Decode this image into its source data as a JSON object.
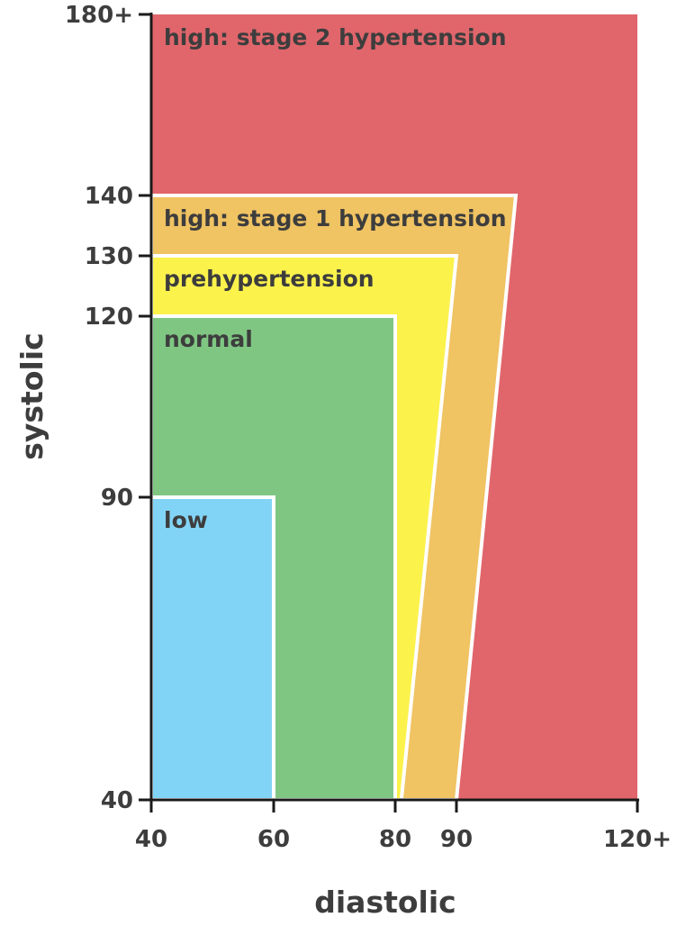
{
  "chart_data": {
    "type": "area",
    "title": "",
    "xlabel": "diastolic",
    "ylabel": "systolic",
    "x_ticks": [
      {
        "value": 40,
        "label": "40"
      },
      {
        "value": 60,
        "label": "60"
      },
      {
        "value": 80,
        "label": "80"
      },
      {
        "value": 90,
        "label": "90"
      },
      {
        "value": 120,
        "label": "120+"
      }
    ],
    "y_ticks": [
      {
        "value": 40,
        "label": "40"
      },
      {
        "value": 90,
        "label": "90"
      },
      {
        "value": 120,
        "label": "120"
      },
      {
        "value": 130,
        "label": "130"
      },
      {
        "value": 140,
        "label": "140"
      },
      {
        "value": 180,
        "label": "180+"
      }
    ],
    "zones": [
      {
        "name": "high: stage 2 hypertension",
        "color": "#e0666b",
        "polygon": [
          [
            40,
            40
          ],
          [
            120,
            40
          ],
          [
            120,
            180
          ],
          [
            40,
            180
          ]
        ]
      },
      {
        "name": "high: stage 1 hypertension",
        "color": "#f0c363",
        "polygon": [
          [
            40,
            40
          ],
          [
            90,
            40
          ],
          [
            100,
            140
          ],
          [
            40,
            140
          ]
        ]
      },
      {
        "name": "prehypertension",
        "color": "#fbf24c",
        "polygon": [
          [
            40,
            40
          ],
          [
            81,
            40
          ],
          [
            90,
            130
          ],
          [
            40,
            130
          ]
        ]
      },
      {
        "name": "normal",
        "color": "#7fc683",
        "polygon": [
          [
            40,
            40
          ],
          [
            80,
            40
          ],
          [
            80,
            120
          ],
          [
            40,
            120
          ]
        ]
      },
      {
        "name": "low",
        "color": "#82d4f6",
        "polygon": [
          [
            40,
            40
          ],
          [
            60,
            40
          ],
          [
            60,
            90
          ],
          [
            40,
            90
          ]
        ]
      }
    ]
  }
}
